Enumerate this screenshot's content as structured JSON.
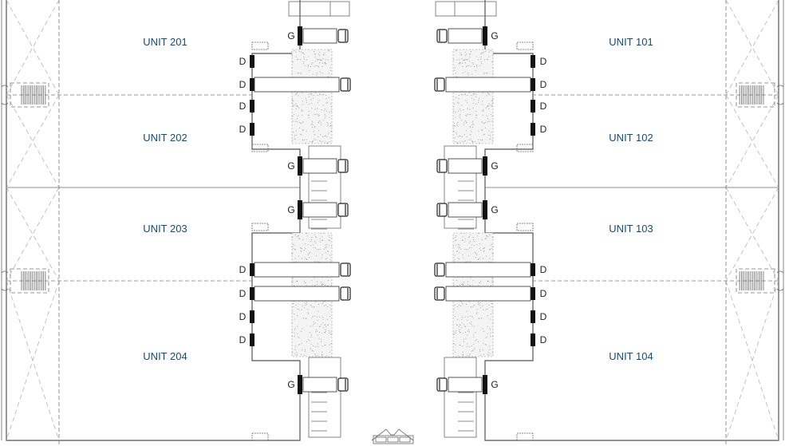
{
  "plan": {
    "units_left": [
      {
        "label": "UNIT 201"
      },
      {
        "label": "UNIT 202"
      },
      {
        "label": "UNIT 203"
      },
      {
        "label": "UNIT 204"
      }
    ],
    "units_right": [
      {
        "label": "UNIT 101"
      },
      {
        "label": "UNIT 102"
      },
      {
        "label": "UNIT 103"
      },
      {
        "label": "UNIT 104"
      }
    ],
    "dock_door_label": "D",
    "grade_door_label": "G",
    "colors": {
      "unit_label": "#1d4a66",
      "walls": "#555555",
      "doors": "#111111"
    }
  }
}
